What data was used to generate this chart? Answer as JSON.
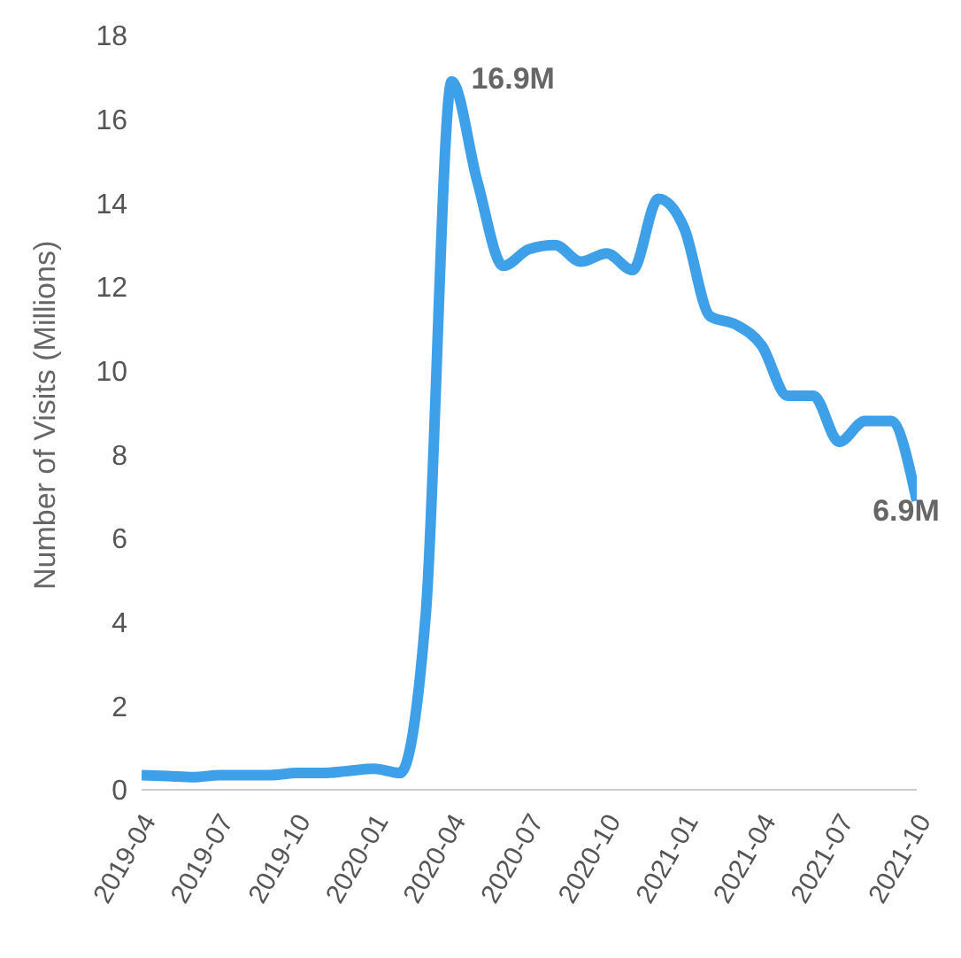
{
  "chart_data": {
    "type": "line",
    "ylabel": "Number of Visits (Millions)",
    "categories": [
      "2019-04",
      null,
      null,
      "2019-07",
      null,
      null,
      "2019-10",
      null,
      null,
      "2020-01",
      null,
      null,
      "2020-04",
      null,
      null,
      "2020-07",
      null,
      null,
      "2020-10",
      null,
      null,
      "2021-01",
      null,
      null,
      "2021-04",
      null,
      null,
      "2021-07",
      null,
      null,
      "2021-10"
    ],
    "series": [
      {
        "color": "#3fa0ea",
        "values": [
          0.35,
          0.33,
          0.3,
          0.35,
          0.35,
          0.35,
          0.4,
          0.4,
          0.45,
          0.5,
          0.4,
          4.2,
          16.9,
          14.5,
          12.5,
          12.9,
          13.0,
          12.6,
          12.8,
          12.4,
          14.1,
          13.4,
          11.3,
          11.1,
          10.6,
          9.4,
          9.4,
          8.3,
          8.8,
          8.8,
          6.9
        ]
      }
    ],
    "ylim": [
      0,
      18
    ],
    "yticks": [
      0,
      2,
      4,
      6,
      8,
      10,
      12,
      14,
      16,
      18
    ],
    "grid": false,
    "legend": false,
    "marker": "none",
    "line_style": "solid",
    "annotations": [
      {
        "text": "16.9M",
        "x": "2020-04",
        "y": 16.9
      },
      "6.9M"
    ]
  }
}
